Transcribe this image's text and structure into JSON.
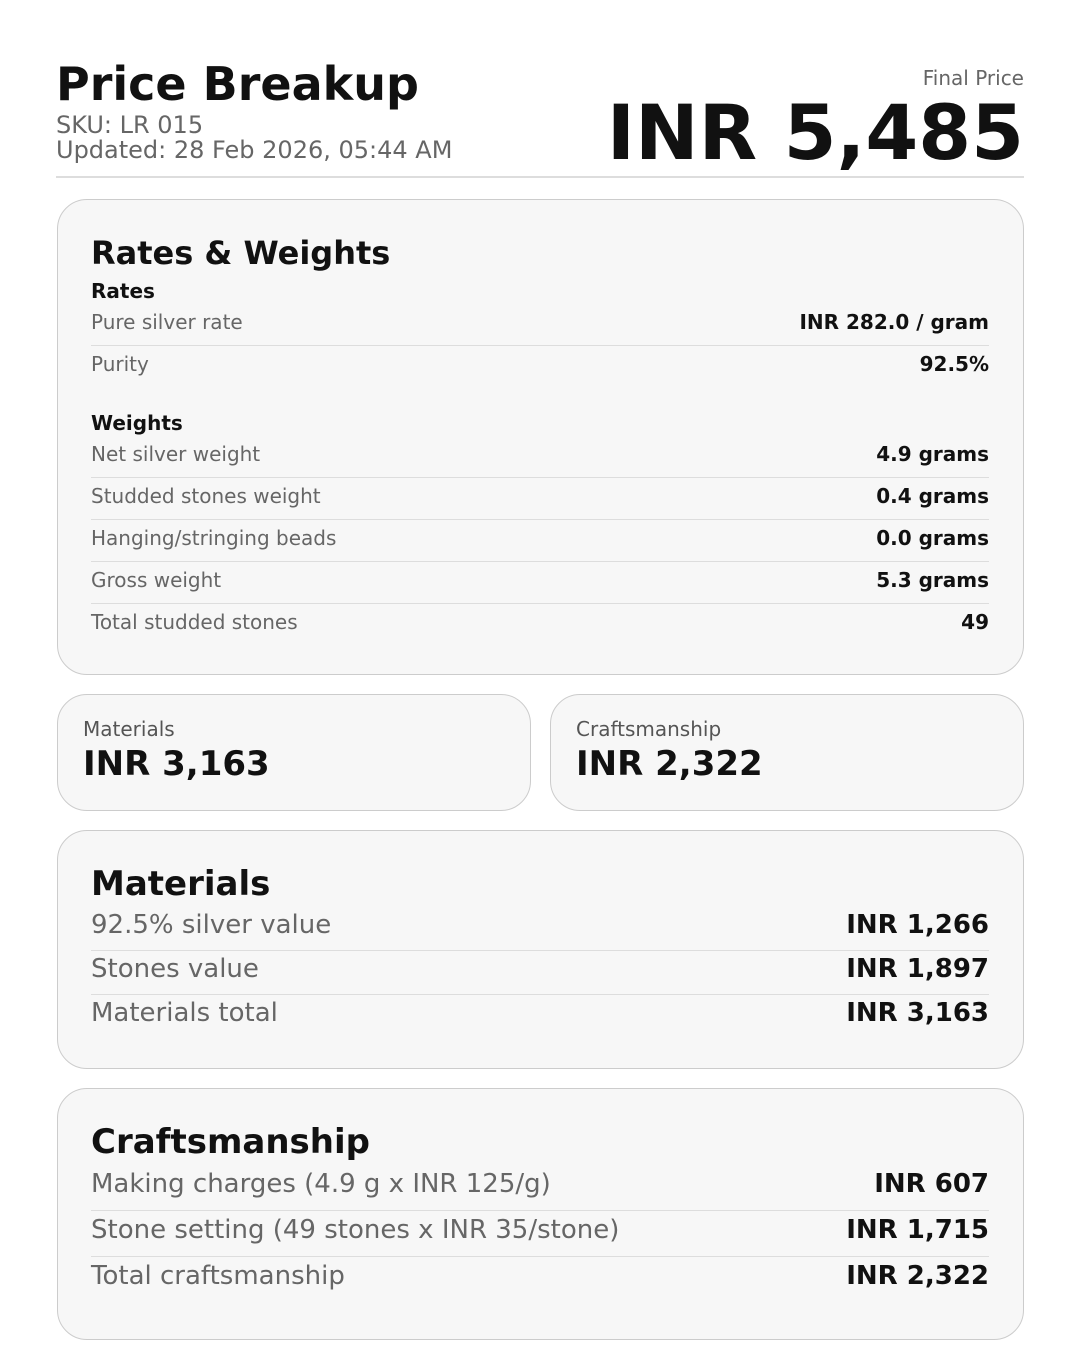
{
  "header": {
    "title": "Price Breakup",
    "sku": "SKU: LR 015",
    "updated": "Updated: 28 Feb 2026, 05:44 AM",
    "final_price_label": "Final Price",
    "final_price": "INR 5,485"
  },
  "rates_weights": {
    "title": "Rates & Weights",
    "rates_heading": "Rates",
    "rates": [
      {
        "label": "Pure silver rate",
        "value": "INR 282.0 / gram"
      },
      {
        "label": "Purity",
        "value": "92.5%"
      }
    ],
    "weights_heading": "Weights",
    "weights": [
      {
        "label": "Net silver weight",
        "value": "4.9 grams"
      },
      {
        "label": "Studded stones weight",
        "value": "0.4 grams"
      },
      {
        "label": "Hanging/stringing beads",
        "value": "0.0 grams"
      },
      {
        "label": "Gross weight",
        "value": "5.3 grams"
      },
      {
        "label": "Total studded stones",
        "value": "49"
      }
    ]
  },
  "summary": [
    {
      "label": "Materials",
      "value": "INR 3,163"
    },
    {
      "label": "Craftsmanship",
      "value": "INR 2,322"
    }
  ],
  "materials": {
    "title": "Materials",
    "rows": [
      {
        "label": "92.5% silver value",
        "value": "INR 1,266"
      },
      {
        "label": "Stones value",
        "value": "INR 1,897"
      },
      {
        "label": "Materials total",
        "value": "INR 3,163"
      }
    ]
  },
  "craftsmanship": {
    "title": "Craftsmanship",
    "rows": [
      {
        "label": "Making charges (4.9 g x INR 125/g)",
        "value": "INR 607"
      },
      {
        "label": "Stone setting (49 stones x INR 35/stone)",
        "value": "INR 1,715"
      },
      {
        "label": "Total craftsmanship",
        "value": "INR 2,322"
      }
    ]
  }
}
